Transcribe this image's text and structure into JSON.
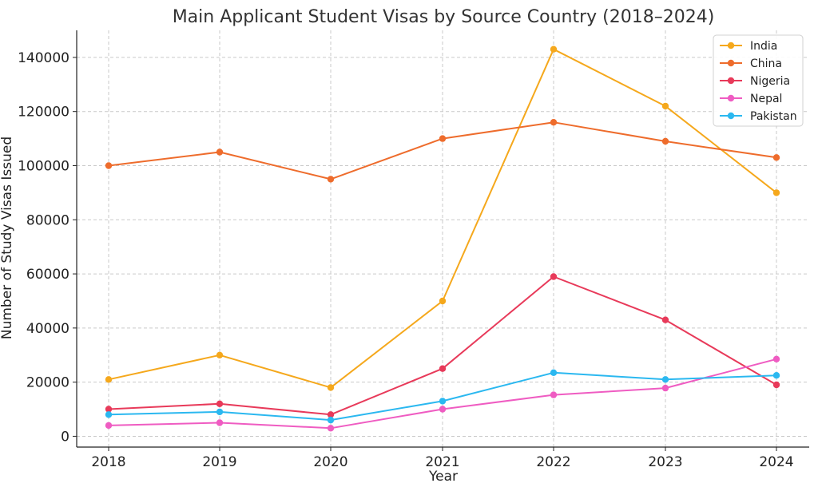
{
  "chart_data": {
    "type": "line",
    "title": "Main Applicant Student Visas by Source Country (2018–2024)",
    "xlabel": "Year",
    "ylabel": "Number of Study Visas Issued",
    "x": [
      "2018",
      "2019",
      "2020",
      "2021",
      "2022",
      "2023",
      "2024"
    ],
    "ylim": [
      -4000,
      150000
    ],
    "yticks": [
      "0",
      "20000",
      "40000",
      "60000",
      "80000",
      "100000",
      "120000",
      "140000"
    ],
    "grid": true,
    "legend_position": "top-right",
    "series": [
      {
        "name": "India",
        "color": "#f5a81c",
        "values": [
          21000,
          30000,
          18000,
          50000,
          143000,
          122000,
          90000
        ]
      },
      {
        "name": "China",
        "color": "#ee6c2c",
        "values": [
          100000,
          105000,
          95000,
          110000,
          116000,
          109000,
          103000
        ]
      },
      {
        "name": "Nigeria",
        "color": "#e83a5a",
        "values": [
          10000,
          12000,
          8000,
          25000,
          59000,
          43000,
          19000
        ]
      },
      {
        "name": "Nepal",
        "color": "#ef5cc2",
        "values": [
          4000,
          5000,
          3000,
          10000,
          15300,
          17800,
          28500
        ]
      },
      {
        "name": "Pakistan",
        "color": "#2bb8f0",
        "values": [
          8000,
          9000,
          6000,
          13000,
          23500,
          21000,
          22500
        ]
      }
    ]
  }
}
